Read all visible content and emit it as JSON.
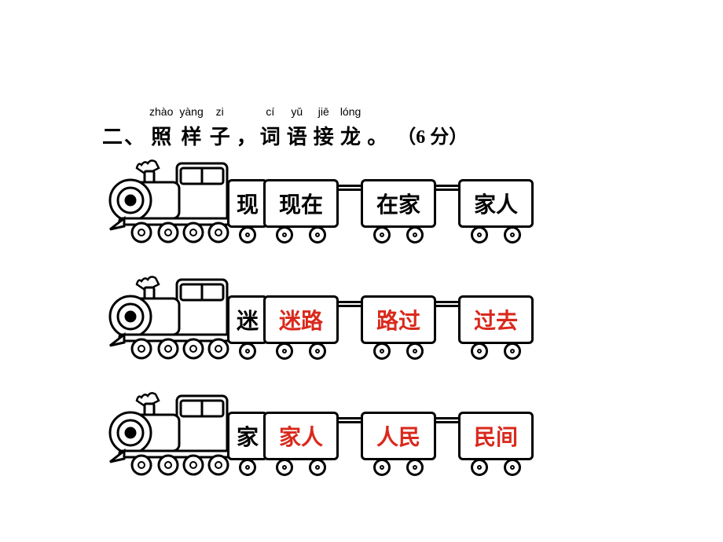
{
  "title": {
    "number": "二、",
    "chars": [
      {
        "pinyin": "zhào",
        "hanzi": "照"
      },
      {
        "pinyin": "yàng",
        "hanzi": "样"
      },
      {
        "pinyin": "zi",
        "hanzi": "子"
      }
    ],
    "comma": "，",
    "chars2": [
      {
        "pinyin": "cí",
        "hanzi": "词"
      },
      {
        "pinyin": "yǔ",
        "hanzi": "语"
      },
      {
        "pinyin": "jiē",
        "hanzi": "接"
      },
      {
        "pinyin": "lóng",
        "hanzi": "龙"
      }
    ],
    "period": "。",
    "points": "（6 分）"
  },
  "style": {
    "loc_stroke": "#000000",
    "black": "#000000",
    "red": "#d9291c"
  },
  "trains": [
    {
      "head": "现",
      "cars": [
        {
          "text": "现在",
          "color": "black"
        },
        {
          "text": "在家",
          "color": "black"
        },
        {
          "text": "家人",
          "color": "black"
        }
      ]
    },
    {
      "head": "迷",
      "cars": [
        {
          "text": "迷路",
          "color": "red"
        },
        {
          "text": "路过",
          "color": "red"
        },
        {
          "text": "过去",
          "color": "red"
        }
      ]
    },
    {
      "head": "家",
      "cars": [
        {
          "text": "家人",
          "color": "red"
        },
        {
          "text": "人民",
          "color": "red"
        },
        {
          "text": "民间",
          "color": "red"
        }
      ]
    }
  ]
}
